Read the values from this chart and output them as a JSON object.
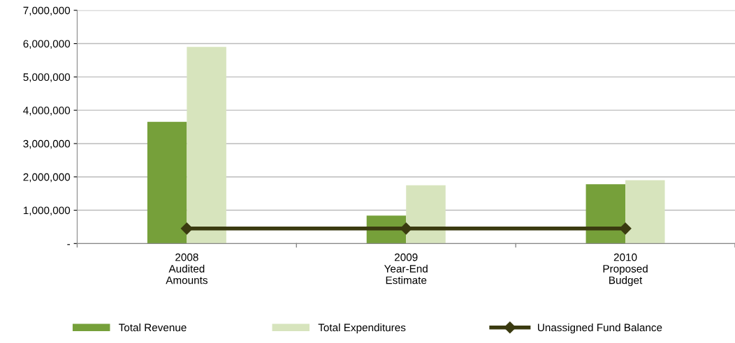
{
  "chart_data": {
    "type": "bar",
    "categories": [
      "2008\nAudited\nAmounts",
      "2009\nYear-End\nEstimate",
      "2010\nProposed\nBudget"
    ],
    "series": [
      {
        "name": "Total Revenue",
        "color": "#76a03a",
        "values": [
          3650000,
          840000,
          1780000
        ]
      },
      {
        "name": "Total Expenditures",
        "color": "#d7e4bd",
        "values": [
          5900000,
          1750000,
          1900000
        ]
      },
      {
        "name": "Unassigned Fund Balance",
        "type": "line",
        "color": "#3a3a10",
        "marker": "diamond",
        "values": [
          450000,
          450000,
          450000
        ]
      }
    ],
    "ylim": [
      0,
      7000000
    ],
    "yticks": [
      {
        "value": 0,
        "label": "-"
      },
      {
        "value": 1000000,
        "label": "1,000,000"
      },
      {
        "value": 2000000,
        "label": "2,000,000"
      },
      {
        "value": 3000000,
        "label": "3,000,000"
      },
      {
        "value": 4000000,
        "label": "4,000,000"
      },
      {
        "value": 5000000,
        "label": "5,000,000"
      },
      {
        "value": 6000000,
        "label": "6,000,000"
      },
      {
        "value": 7000000,
        "label": "7,000,000"
      }
    ],
    "grid": "y",
    "legend": "bottom"
  }
}
